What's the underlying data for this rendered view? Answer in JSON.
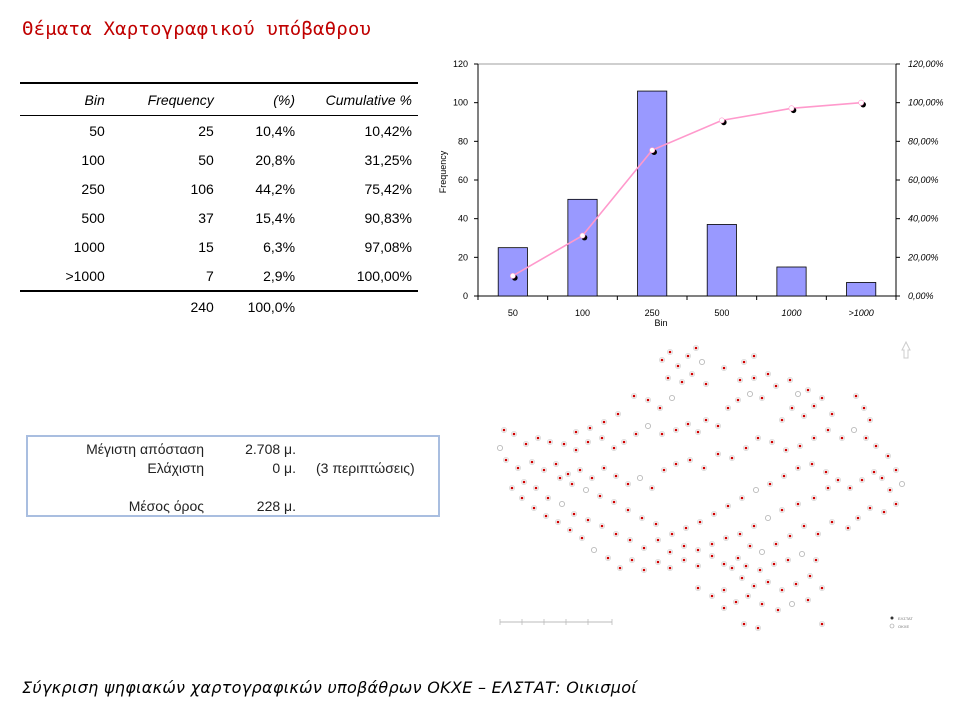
{
  "page": {
    "title": "Θέματα Χαρτογραφικού υπόβαθρου",
    "footer": "Σύγκριση ψηφιακών χαρτογραφικών υποβάθρων ΟΚΧΕ – ΕΛΣΤΑΤ: Οικισμοί"
  },
  "table": {
    "headers": [
      "Bin",
      "Frequency",
      "(%)",
      "Cumulative %"
    ],
    "rows": [
      [
        "50",
        "25",
        "10,4%",
        "10,42%"
      ],
      [
        "100",
        "50",
        "20,8%",
        "31,25%"
      ],
      [
        "250",
        "106",
        "44,2%",
        "75,42%"
      ],
      [
        "500",
        "37",
        "15,4%",
        "90,83%"
      ],
      [
        "1000",
        "15",
        "6,3%",
        "97,08%"
      ],
      [
        ">1000",
        "7",
        "2,9%",
        "100,00%"
      ]
    ],
    "total": [
      "",
      "240",
      "100,0%",
      ""
    ]
  },
  "distance_summary": {
    "max_label": "Μέγιστη απόσταση",
    "max_value": "2.708 μ.",
    "min_label": "Ελάχιστη",
    "min_value": "0 μ.",
    "min_note": "(3 περιπτώσεις)",
    "mean_label": "Μέσος όρος",
    "mean_value": "228 μ."
  },
  "chart_data": {
    "type": "bar",
    "categories": [
      "50",
      "100",
      "250",
      "500",
      "1000",
      ">1000"
    ],
    "series": [
      {
        "values": [
          25,
          50,
          106,
          37,
          15,
          7
        ],
        "color": "#9999ff",
        "axis": "left"
      },
      {
        "type": "line",
        "values": [
          10.42,
          31.25,
          75.42,
          90.83,
          97.08,
          100.0
        ],
        "color": "#ff99cc",
        "axis": "right"
      }
    ],
    "xlabel": "Bin",
    "ylabel": "Frequency",
    "ylim": [
      0,
      120
    ],
    "yticks": [
      "0",
      "20",
      "40",
      "60",
      "80",
      "100",
      "120"
    ],
    "y2lim": [
      0,
      120
    ],
    "y2ticks": [
      "0,00%",
      "20,00%",
      "40,00%",
      "60,00%",
      "80,00%",
      "100,00%",
      "120,00%"
    ],
    "grid": false,
    "legend": "none"
  },
  "map": {
    "legend": [
      "ΕΛΣΤΑΤ",
      "ΟΚΧΕ"
    ],
    "marker_colors": {
      "red": "#cc0000",
      "hollow": "#bbbbbb"
    },
    "north_icon": "north-arrow-icon"
  }
}
